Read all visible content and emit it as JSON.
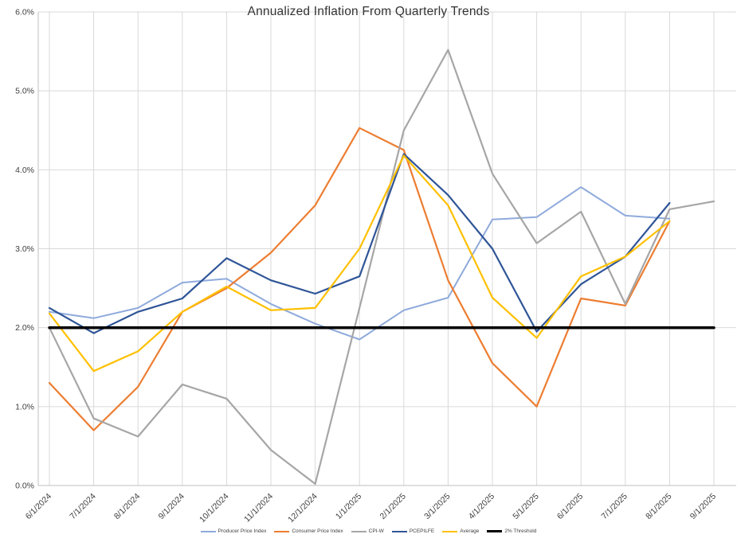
{
  "chart_data": {
    "type": "line",
    "title": "Annualized Inflation From Quarterly Trends",
    "categories": [
      "6/1/2024",
      "7/1/2024",
      "8/1/2024",
      "9/1/2024",
      "10/1/2024",
      "11/1/2024",
      "12/1/2024",
      "1/1/2025",
      "2/1/2025",
      "3/1/2025",
      "4/1/2025",
      "5/1/2025",
      "6/1/2025",
      "7/1/2025",
      "8/1/2025",
      "9/1/2025"
    ],
    "series": [
      {
        "name": "Producer Price Index",
        "color": "#8FAADC",
        "width": 2,
        "values": [
          2.2,
          2.12,
          2.25,
          2.57,
          2.62,
          2.3,
          2.05,
          1.85,
          2.22,
          2.38,
          3.37,
          3.4,
          3.78,
          3.42,
          3.38,
          null
        ]
      },
      {
        "name": "Consumer Price Index",
        "color": "#ED7D31",
        "width": 2.2,
        "values": [
          1.3,
          0.7,
          1.25,
          2.2,
          2.5,
          2.95,
          3.55,
          4.53,
          4.25,
          2.6,
          1.55,
          1.0,
          2.37,
          2.28,
          3.35,
          null
        ]
      },
      {
        "name": "CPI-W",
        "color": "#A6A6A6",
        "width": 2.2,
        "values": [
          2.0,
          0.85,
          0.62,
          1.28,
          1.1,
          0.45,
          0.02,
          2.25,
          4.5,
          5.52,
          3.95,
          3.07,
          3.47,
          2.3,
          3.5,
          3.6
        ]
      },
      {
        "name": "PCEPILFE",
        "color": "#2F5597",
        "width": 2.2,
        "values": [
          2.25,
          1.93,
          2.2,
          2.37,
          2.88,
          2.6,
          2.43,
          2.65,
          4.2,
          3.68,
          3.0,
          1.95,
          2.55,
          2.9,
          3.58,
          null
        ]
      },
      {
        "name": "Average",
        "color": "#FFC000",
        "width": 2.2,
        "values": [
          2.18,
          1.45,
          1.7,
          2.2,
          2.52,
          2.22,
          2.25,
          3.0,
          4.18,
          3.55,
          2.38,
          1.87,
          2.65,
          2.9,
          3.35,
          null
        ]
      },
      {
        "name": "2% Threshold",
        "color": "#000000",
        "width": 3.5,
        "values": [
          2.0,
          2.0,
          2.0,
          2.0,
          2.0,
          2.0,
          2.0,
          2.0,
          2.0,
          2.0,
          2.0,
          2.0,
          2.0,
          2.0,
          2.0,
          2.0
        ]
      }
    ],
    "ylim": [
      0,
      6
    ],
    "yticks": [
      "0.0%",
      "1.0%",
      "2.0%",
      "3.0%",
      "4.0%",
      "5.0%",
      "6.0%"
    ],
    "grid": true,
    "legend_position": "bottom",
    "colors": {
      "gridline": "#d9d9d9",
      "axis": "#bfbfbf",
      "tick_label": "#404040"
    }
  }
}
